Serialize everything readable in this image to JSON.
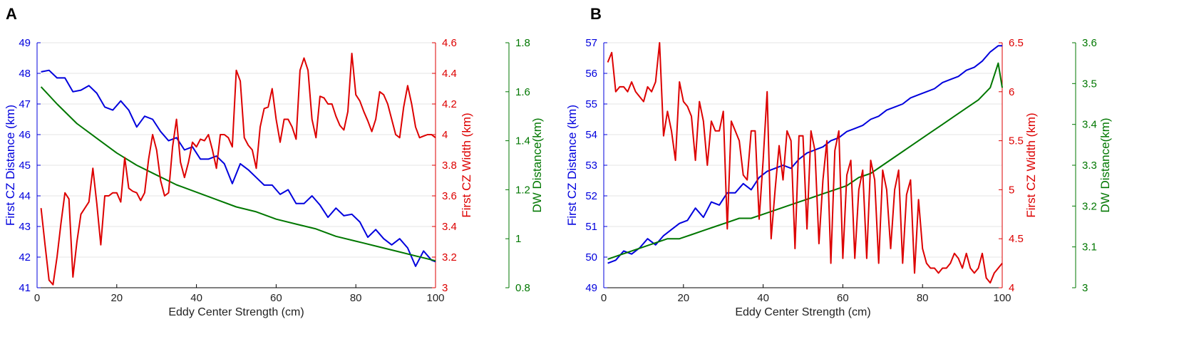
{
  "chart_data": [
    {
      "panel": "A",
      "type": "line",
      "xlabel": "Eddy Center Strength (cm)",
      "xlim": [
        0,
        100
      ],
      "xticks": [
        "0",
        "20",
        "40",
        "60",
        "80",
        "100"
      ],
      "axes": [
        {
          "label": "First CZ Distance (km)",
          "color": "#0000dd",
          "lim": [
            41,
            49
          ],
          "ticks": [
            "41",
            "42",
            "43",
            "44",
            "45",
            "46",
            "47",
            "48",
            "49"
          ]
        },
        {
          "label": "First CZ Width (km)",
          "color": "#dd0000",
          "lim": [
            3,
            4.6
          ],
          "ticks": [
            "3",
            "3.2",
            "3.4",
            "3.6",
            "3.8",
            "4",
            "4.2",
            "4.4",
            "4.6"
          ]
        },
        {
          "label": "DW Distance(km)",
          "color": "#007700",
          "lim": [
            0.8,
            1.8
          ],
          "ticks": [
            "0.8",
            "1",
            "1.2",
            "1.4",
            "1.6",
            "1.8"
          ]
        }
      ],
      "series": [
        {
          "name": "First CZ Distance",
          "axis": 0,
          "x": [
            1,
            3,
            5,
            7,
            9,
            11,
            13,
            15,
            17,
            19,
            21,
            23,
            25,
            27,
            29,
            31,
            33,
            35,
            37,
            39,
            41,
            43,
            45,
            47,
            49,
            51,
            53,
            55,
            57,
            59,
            61,
            63,
            65,
            67,
            69,
            71,
            73,
            75,
            77,
            79,
            81,
            83,
            85,
            87,
            89,
            91,
            93,
            95,
            97,
            99,
            100
          ],
          "values": [
            48.05,
            48.1,
            47.85,
            47.85,
            47.4,
            47.45,
            47.6,
            47.35,
            46.9,
            46.8,
            47.1,
            46.8,
            46.25,
            46.6,
            46.5,
            46.1,
            45.8,
            45.9,
            45.5,
            45.6,
            45.2,
            45.2,
            45.3,
            45.05,
            44.4,
            45.05,
            44.85,
            44.6,
            44.35,
            44.35,
            44.05,
            44.2,
            43.75,
            43.75,
            44.0,
            43.7,
            43.3,
            43.6,
            43.35,
            43.4,
            43.15,
            42.65,
            42.9,
            42.6,
            42.4,
            42.6,
            42.3,
            41.7,
            42.2,
            41.9,
            41.85
          ]
        },
        {
          "name": "DW Distance",
          "axis": 2,
          "x": [
            1,
            5,
            10,
            15,
            20,
            25,
            30,
            35,
            40,
            45,
            50,
            55,
            60,
            65,
            70,
            75,
            80,
            85,
            90,
            95,
            100
          ],
          "values": [
            1.62,
            1.55,
            1.47,
            1.41,
            1.35,
            1.3,
            1.26,
            1.22,
            1.19,
            1.16,
            1.13,
            1.11,
            1.08,
            1.06,
            1.04,
            1.01,
            0.99,
            0.97,
            0.95,
            0.93,
            0.91
          ]
        },
        {
          "name": "First CZ Width",
          "axis": 1,
          "x": [
            1,
            2,
            3,
            4,
            5,
            6,
            7,
            8,
            9,
            10,
            11,
            12,
            13,
            14,
            15,
            16,
            17,
            18,
            19,
            20,
            21,
            22,
            23,
            24,
            25,
            26,
            27,
            28,
            29,
            30,
            31,
            32,
            33,
            34,
            35,
            36,
            37,
            38,
            39,
            40,
            41,
            42,
            43,
            44,
            45,
            46,
            47,
            48,
            49,
            50,
            51,
            52,
            53,
            54,
            55,
            56,
            57,
            58,
            59,
            60,
            61,
            62,
            63,
            64,
            65,
            66,
            67,
            68,
            69,
            70,
            71,
            72,
            73,
            74,
            75,
            76,
            77,
            78,
            79,
            80,
            81,
            82,
            83,
            84,
            85,
            86,
            87,
            88,
            89,
            90,
            91,
            92,
            93,
            94,
            95,
            96,
            97,
            98,
            99,
            100
          ],
          "values": [
            3.52,
            3.28,
            3.05,
            3.02,
            3.2,
            3.42,
            3.62,
            3.58,
            3.07,
            3.3,
            3.48,
            3.52,
            3.56,
            3.78,
            3.55,
            3.28,
            3.6,
            3.6,
            3.62,
            3.62,
            3.56,
            3.85,
            3.65,
            3.63,
            3.62,
            3.57,
            3.62,
            3.84,
            4.0,
            3.9,
            3.7,
            3.6,
            3.62,
            3.92,
            4.1,
            3.82,
            3.72,
            3.82,
            3.95,
            3.92,
            3.97,
            3.96,
            4.0,
            3.9,
            3.78,
            4.0,
            4.0,
            3.98,
            3.92,
            4.42,
            4.35,
            3.98,
            3.93,
            3.9,
            3.78,
            4.05,
            4.17,
            4.18,
            4.3,
            4.1,
            3.95,
            4.1,
            4.1,
            4.05,
            3.97,
            4.42,
            4.5,
            4.42,
            4.1,
            3.98,
            4.25,
            4.24,
            4.2,
            4.2,
            4.12,
            4.06,
            4.03,
            4.15,
            4.53,
            4.26,
            4.22,
            4.15,
            4.09,
            4.02,
            4.1,
            4.28,
            4.26,
            4.2,
            4.1,
            4.0,
            3.98,
            4.18,
            4.32,
            4.2,
            4.05,
            3.98,
            3.99,
            4.0,
            4.0,
            3.98
          ]
        }
      ]
    },
    {
      "panel": "B",
      "type": "line",
      "xlabel": "Eddy Center Strength (cm)",
      "xlim": [
        0,
        100
      ],
      "xticks": [
        "0",
        "20",
        "40",
        "60",
        "80",
        "100"
      ],
      "axes": [
        {
          "label": "First CZ Distance (km)",
          "color": "#0000dd",
          "lim": [
            49,
            57
          ],
          "ticks": [
            "49",
            "50",
            "51",
            "52",
            "53",
            "54",
            "55",
            "56",
            "57"
          ]
        },
        {
          "label": "First CZ Width (km)",
          "color": "#dd0000",
          "lim": [
            4,
            6.5
          ],
          "ticks": [
            "4",
            "4.5",
            "5",
            "5.5",
            "6",
            "6.5"
          ]
        },
        {
          "label": "DW Distance(km)",
          "color": "#007700",
          "lim": [
            3,
            3.6
          ],
          "ticks": [
            "3",
            "3.1",
            "3.2",
            "3.3",
            "3.4",
            "3.5",
            "3.6"
          ]
        }
      ],
      "series": [
        {
          "name": "First CZ Distance",
          "axis": 0,
          "x": [
            1,
            3,
            5,
            7,
            9,
            11,
            13,
            15,
            17,
            19,
            21,
            23,
            25,
            27,
            29,
            31,
            33,
            35,
            37,
            39,
            41,
            43,
            45,
            47,
            49,
            51,
            53,
            55,
            57,
            59,
            61,
            63,
            65,
            67,
            69,
            71,
            73,
            75,
            77,
            79,
            81,
            83,
            85,
            87,
            89,
            91,
            93,
            95,
            97,
            99,
            100
          ],
          "values": [
            49.8,
            49.9,
            50.2,
            50.1,
            50.3,
            50.6,
            50.4,
            50.7,
            50.9,
            51.1,
            51.2,
            51.6,
            51.3,
            51.8,
            51.7,
            52.1,
            52.1,
            52.4,
            52.2,
            52.6,
            52.8,
            52.9,
            53.0,
            52.9,
            53.2,
            53.4,
            53.5,
            53.6,
            53.8,
            53.9,
            54.1,
            54.2,
            54.3,
            54.5,
            54.6,
            54.8,
            54.9,
            55.0,
            55.2,
            55.3,
            55.4,
            55.5,
            55.7,
            55.8,
            55.9,
            56.1,
            56.2,
            56.4,
            56.7,
            56.9,
            56.9
          ]
        },
        {
          "name": "DW Distance",
          "axis": 2,
          "x": [
            1,
            4,
            7,
            10,
            13,
            16,
            19,
            22,
            25,
            28,
            31,
            34,
            37,
            40,
            43,
            46,
            49,
            52,
            55,
            58,
            61,
            64,
            67,
            70,
            73,
            76,
            79,
            82,
            85,
            88,
            91,
            94,
            97,
            98,
            99,
            100
          ],
          "values": [
            3.07,
            3.08,
            3.09,
            3.1,
            3.11,
            3.12,
            3.12,
            3.13,
            3.14,
            3.15,
            3.16,
            3.17,
            3.17,
            3.18,
            3.19,
            3.2,
            3.21,
            3.22,
            3.23,
            3.24,
            3.25,
            3.27,
            3.28,
            3.3,
            3.32,
            3.34,
            3.36,
            3.38,
            3.4,
            3.42,
            3.44,
            3.46,
            3.49,
            3.52,
            3.55,
            3.49
          ]
        },
        {
          "name": "First CZ Width",
          "axis": 1,
          "x": [
            1,
            2,
            3,
            4,
            5,
            6,
            7,
            8,
            9,
            10,
            11,
            12,
            13,
            14,
            15,
            16,
            17,
            18,
            19,
            20,
            21,
            22,
            23,
            24,
            25,
            26,
            27,
            28,
            29,
            30,
            31,
            32,
            33,
            34,
            35,
            36,
            37,
            38,
            39,
            40,
            41,
            42,
            43,
            44,
            45,
            46,
            47,
            48,
            49,
            50,
            51,
            52,
            53,
            54,
            55,
            56,
            57,
            58,
            59,
            60,
            61,
            62,
            63,
            64,
            65,
            66,
            67,
            68,
            69,
            70,
            71,
            72,
            73,
            74,
            75,
            76,
            77,
            78,
            79,
            80,
            81,
            82,
            83,
            84,
            85,
            86,
            87,
            88,
            89,
            90,
            91,
            92,
            93,
            94,
            95,
            96,
            97,
            98,
            99,
            100
          ],
          "values": [
            6.3,
            6.4,
            6.0,
            6.05,
            6.05,
            6.0,
            6.1,
            6.0,
            5.95,
            5.9,
            6.05,
            6.0,
            6.1,
            6.5,
            5.55,
            5.8,
            5.6,
            5.3,
            6.1,
            5.9,
            5.85,
            5.75,
            5.3,
            5.9,
            5.7,
            5.25,
            5.7,
            5.6,
            5.6,
            5.8,
            4.6,
            5.7,
            5.6,
            5.5,
            5.15,
            5.1,
            5.6,
            5.6,
            4.7,
            5.3,
            6.0,
            4.5,
            5.0,
            5.45,
            5.1,
            5.6,
            5.5,
            4.4,
            5.55,
            5.55,
            4.6,
            5.6,
            5.4,
            4.45,
            5.1,
            5.5,
            4.25,
            5.4,
            5.6,
            4.3,
            5.15,
            5.3,
            4.3,
            5.0,
            5.2,
            4.3,
            5.3,
            5.1,
            4.25,
            5.2,
            5.0,
            4.4,
            5.0,
            5.2,
            4.25,
            4.95,
            5.1,
            4.15,
            4.9,
            4.4,
            4.25,
            4.2,
            4.2,
            4.15,
            4.2,
            4.2,
            4.25,
            4.35,
            4.3,
            4.2,
            4.35,
            4.2,
            4.15,
            4.2,
            4.35,
            4.1,
            4.05,
            4.15,
            4.2,
            4.25
          ]
        }
      ]
    }
  ]
}
